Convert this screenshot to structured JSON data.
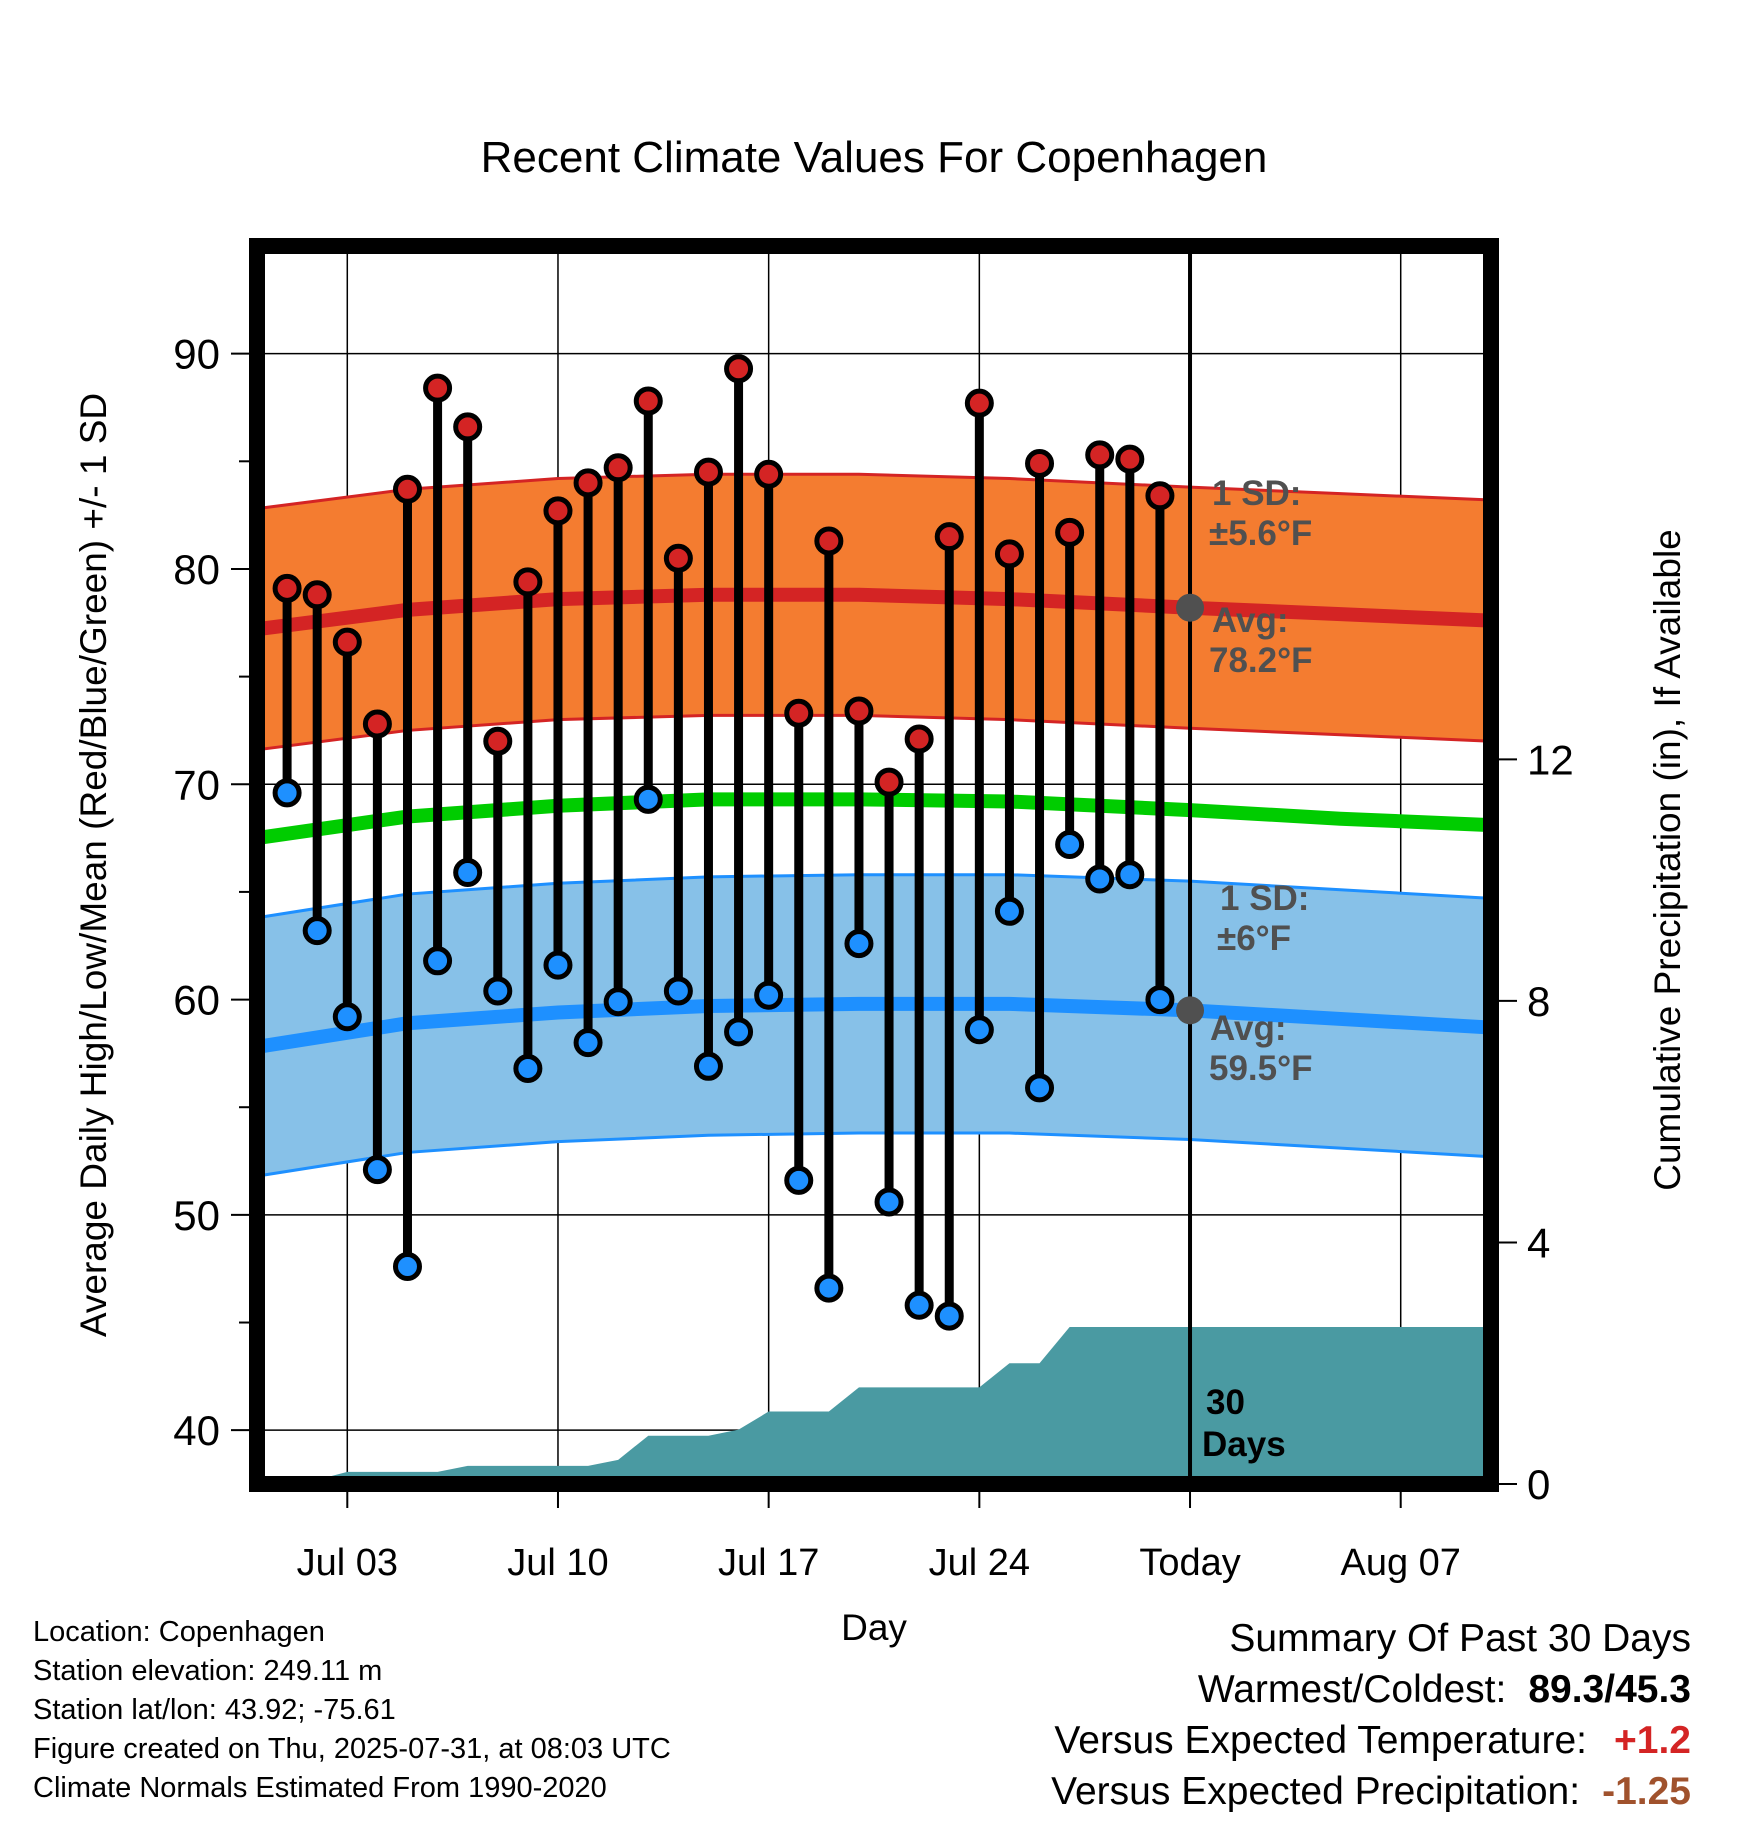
{
  "chart_data": {
    "type": "line",
    "title": "Recent Climate Values For Copenhagen",
    "xlabel": "Day",
    "ylabel": "Average Daily High/Low/Mean (Red/Blue/Green) +/- 1 SD",
    "y2label": "Cumulative Precipitation (in), If Available",
    "ylim": [
      37.5,
      95
    ],
    "y_ticks": [
      40,
      50,
      60,
      70,
      80,
      90
    ],
    "y2lim": [
      0,
      20.5
    ],
    "y2_ticks": [
      0,
      4,
      8,
      12
    ],
    "x_range": [
      "2025-06-30",
      "2025-08-10"
    ],
    "x_ticks": [
      {
        "date": "2025-07-03",
        "label": "Jul 03"
      },
      {
        "date": "2025-07-10",
        "label": "Jul 10"
      },
      {
        "date": "2025-07-17",
        "label": "Jul 17"
      },
      {
        "date": "2025-07-24",
        "label": "Jul 24"
      },
      {
        "date": "2025-07-31",
        "label": "Today"
      },
      {
        "date": "2025-08-07",
        "label": "Aug 07"
      }
    ],
    "grid": true,
    "today": "2025-07-31",
    "colors": {
      "high": "#d42424",
      "low": "#1e90ff",
      "mean": "#00cc00",
      "high_band": "#f47c30",
      "low_band": "#87c1e8",
      "precip": "#4a9aa2",
      "avg_dot": "#505050",
      "annotation": "#505050",
      "precip_diff": "#a0522d",
      "temp_diff": "#d42424"
    },
    "daily": {
      "dates": [
        "2025-07-01",
        "2025-07-02",
        "2025-07-03",
        "2025-07-04",
        "2025-07-05",
        "2025-07-06",
        "2025-07-07",
        "2025-07-08",
        "2025-07-09",
        "2025-07-10",
        "2025-07-11",
        "2025-07-12",
        "2025-07-13",
        "2025-07-14",
        "2025-07-15",
        "2025-07-16",
        "2025-07-17",
        "2025-07-18",
        "2025-07-19",
        "2025-07-20",
        "2025-07-21",
        "2025-07-22",
        "2025-07-23",
        "2025-07-24",
        "2025-07-25",
        "2025-07-26",
        "2025-07-27",
        "2025-07-28",
        "2025-07-29",
        "2025-07-30"
      ],
      "high": [
        79.1,
        78.8,
        76.6,
        72.8,
        83.7,
        88.4,
        86.6,
        72.0,
        79.4,
        82.7,
        84.0,
        84.7,
        87.8,
        80.5,
        84.5,
        89.3,
        84.4,
        73.3,
        81.3,
        73.4,
        70.1,
        72.1,
        81.5,
        87.7,
        80.7,
        84.9,
        81.7,
        85.3,
        85.1,
        83.4
      ],
      "low": [
        69.6,
        63.2,
        59.2,
        52.1,
        47.6,
        61.8,
        65.9,
        60.4,
        56.8,
        61.6,
        58.0,
        59.9,
        69.3,
        60.4,
        56.9,
        58.5,
        60.2,
        51.6,
        46.6,
        62.6,
        50.6,
        45.8,
        45.3,
        58.6,
        64.1,
        55.9,
        67.2,
        65.6,
        65.8,
        60.0
      ]
    },
    "normals": {
      "dates": [
        "2025-06-30",
        "2025-07-05",
        "2025-07-10",
        "2025-07-15",
        "2025-07-20",
        "2025-07-25",
        "2025-07-31",
        "2025-08-05",
        "2025-08-10"
      ],
      "high_avg": [
        77.2,
        78.1,
        78.6,
        78.8,
        78.8,
        78.6,
        78.2,
        77.9,
        77.6
      ],
      "high_sd": 5.6,
      "low_avg": [
        57.8,
        58.9,
        59.4,
        59.7,
        59.8,
        59.8,
        59.5,
        59.1,
        58.7
      ],
      "low_sd": 6.0,
      "mean_avg": [
        67.5,
        68.5,
        69.0,
        69.3,
        69.3,
        69.2,
        68.8,
        68.4,
        68.1
      ]
    },
    "precip_cum": {
      "dates": [
        "2025-07-01",
        "2025-07-02",
        "2025-07-03",
        "2025-07-04",
        "2025-07-05",
        "2025-07-06",
        "2025-07-07",
        "2025-07-08",
        "2025-07-09",
        "2025-07-10",
        "2025-07-11",
        "2025-07-12",
        "2025-07-13",
        "2025-07-14",
        "2025-07-15",
        "2025-07-16",
        "2025-07-17",
        "2025-07-18",
        "2025-07-19",
        "2025-07-20",
        "2025-07-21",
        "2025-07-22",
        "2025-07-23",
        "2025-07-24",
        "2025-07-25",
        "2025-07-26",
        "2025-07-27",
        "2025-07-28",
        "2025-07-29",
        "2025-07-30",
        "2025-08-10"
      ],
      "values": [
        0.05,
        0.07,
        0.2,
        0.2,
        0.2,
        0.2,
        0.3,
        0.3,
        0.3,
        0.3,
        0.3,
        0.4,
        0.8,
        0.8,
        0.8,
        0.9,
        1.2,
        1.2,
        1.2,
        1.6,
        1.6,
        1.6,
        1.6,
        1.6,
        2.0,
        2.0,
        2.6,
        2.6,
        2.6,
        2.6,
        2.6
      ]
    },
    "annotations": {
      "high_sd_label": "1 SD:",
      "high_sd_value": "±5.6°F",
      "high_avg_label": "Avg:",
      "high_avg_value": "78.2°F",
      "low_sd_label": "1 SD:",
      "low_sd_value": "±6°F",
      "low_avg_label": "Avg:",
      "low_avg_value": "59.5°F",
      "days_num": "30",
      "days_word": "Days"
    }
  },
  "footer": {
    "location": "Location: Copenhagen",
    "elevation": "Station elevation: 249.11 m",
    "latlon": "Station lat/lon: 43.92; -75.61",
    "created": "Figure created on Thu, 2025-07-31, at 08:03 UTC",
    "normals": "Climate Normals Estimated From 1990-2020"
  },
  "summary": {
    "heading": "Summary Of Past 30 Days",
    "warmest_label": "Warmest/Coldest:",
    "warmest_value": "89.3/45.3",
    "temp_label": "Versus Expected Temperature:",
    "temp_value": "+1.2",
    "precip_label": "Versus Expected Precipitation:",
    "precip_value": "-1.25"
  }
}
